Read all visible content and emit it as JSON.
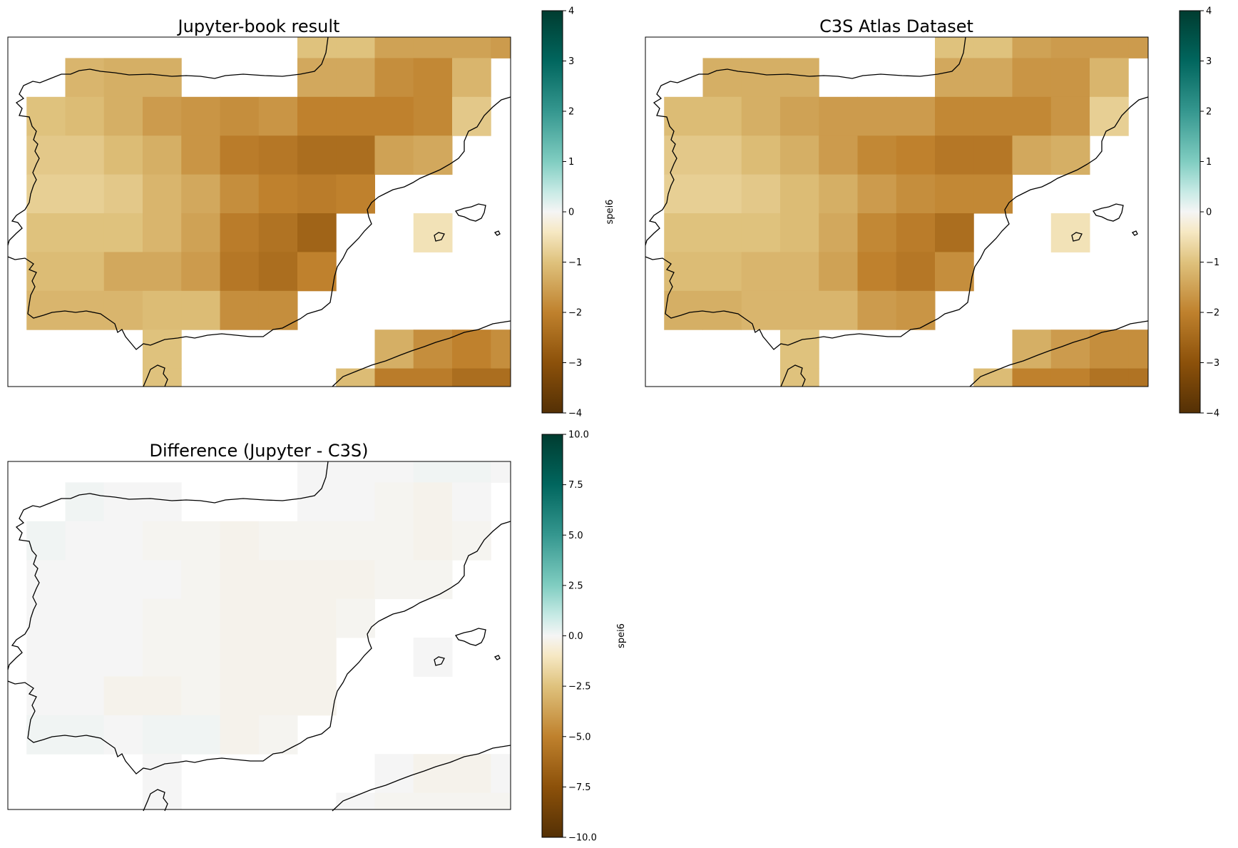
{
  "chart_data": [
    {
      "type": "heatmap",
      "title": "Jupyter-book result",
      "colorbar": {
        "label": "spei6",
        "ylim": [
          -4,
          4
        ],
        "ticks": [
          -4,
          -3,
          -2,
          -1,
          0,
          1,
          2,
          3,
          4
        ],
        "tick_labels": [
          "−4",
          "−3",
          "−2",
          "−1",
          "0",
          "1",
          "2",
          "3",
          "4"
        ],
        "colormap": "BrBG"
      },
      "grid_values": [
        [
          null,
          null,
          null,
          null,
          null,
          null,
          null,
          null,
          null,
          null,
          null,
          null,
          null
        ],
        [
          null,
          null,
          null,
          null,
          null,
          null,
          null,
          null,
          null,
          null,
          null,
          null,
          null
        ],
        [
          null,
          null,
          null,
          null,
          null,
          null,
          null,
          null,
          null,
          null,
          null,
          null,
          null
        ],
        [
          null,
          null,
          null,
          null,
          null,
          null,
          null,
          null,
          null,
          null,
          null,
          null,
          null
        ],
        [
          null,
          null,
          null,
          null,
          null,
          null,
          null,
          null,
          null,
          null,
          null,
          null,
          null
        ],
        [
          null,
          null,
          null,
          null,
          null,
          null,
          null,
          null,
          null,
          null,
          null,
          null,
          null
        ],
        [
          null,
          null,
          null,
          null,
          null,
          null,
          null,
          null,
          null,
          null,
          null,
          null,
          null
        ],
        [
          null,
          null,
          null,
          null,
          null,
          null,
          null,
          null,
          null,
          null,
          null,
          null,
          null
        ],
        [
          null,
          null,
          null,
          null,
          null,
          null,
          null,
          null,
          null,
          null,
          null,
          null,
          null
        ]
      ]
    },
    {
      "type": "heatmap",
      "title": "C3S Atlas Dataset",
      "colorbar": {
        "label": "spei6",
        "ylim": [
          -4,
          4
        ],
        "ticks": [
          -4,
          -3,
          -2,
          -1,
          0,
          1,
          2,
          3,
          4
        ],
        "tick_labels": [
          "−4",
          "−3",
          "−2",
          "−1",
          "0",
          "1",
          "2",
          "3",
          "4"
        ],
        "colormap": "BrBG"
      },
      "grid_values": []
    },
    {
      "type": "heatmap",
      "title": "Difference (Jupyter - C3S)",
      "colorbar": {
        "label": "spei6",
        "ylim": [
          -10,
          10
        ],
        "ticks": [
          -10,
          -7.5,
          -5,
          -2.5,
          0,
          2.5,
          5,
          7.5,
          10
        ],
        "tick_labels": [
          "−10.0",
          "−7.5",
          "−5.0",
          "−2.5",
          "0.0",
          "2.5",
          "5.0",
          "7.5",
          "10.0"
        ],
        "colormap": "BrBG"
      },
      "grid_values": []
    }
  ]
}
